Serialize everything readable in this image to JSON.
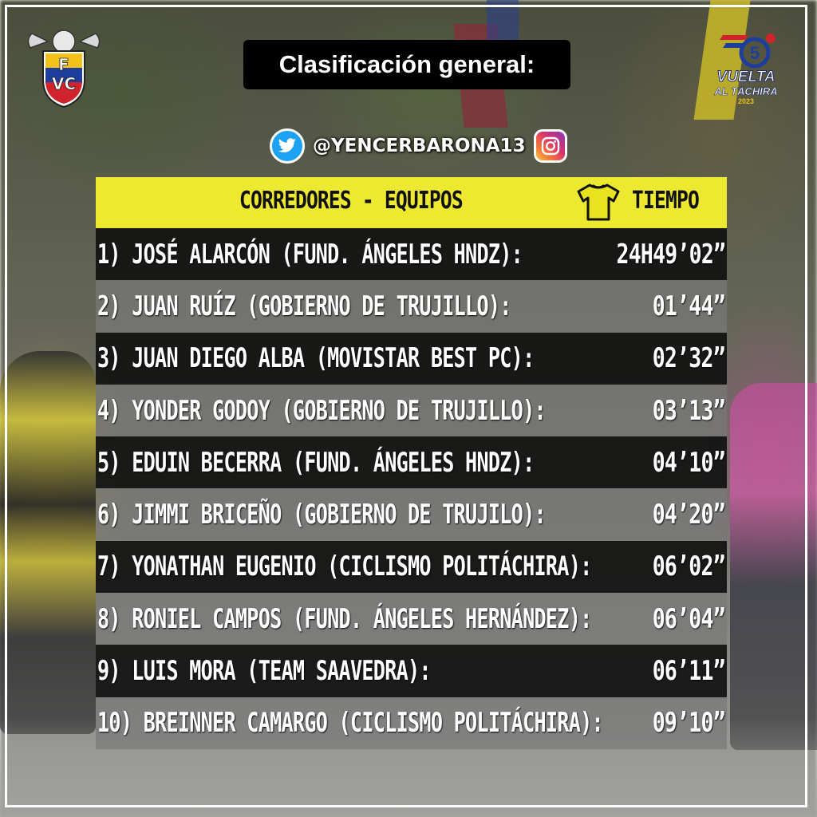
{
  "header": {
    "title": "Clasificación general:",
    "social_handle": "@YENCERBARONA13"
  },
  "logos": {
    "left": "fvc-emblem-icon",
    "right": {
      "word": "VUELTA",
      "sub": "AL TÁCHIRA",
      "year": "2023"
    }
  },
  "table": {
    "columns": {
      "riders": "CORREDORES - EQUIPOS",
      "time": "TIEMPO"
    },
    "rows": [
      {
        "rider": "1) JOSÉ ALARCÓN (FUND. ÁNGELES HNDZ):",
        "time": "24H49’02”"
      },
      {
        "rider": "2) JUAN RUÍZ (GOBIERNO DE TRUJILLO):",
        "time": "01’44”"
      },
      {
        "rider": "3) JUAN DIEGO ALBA (MOVISTAR BEST PC):",
        "time": "02’32”"
      },
      {
        "rider": "4) YONDER GODOY (GOBIERNO DE TRUJILLO):",
        "time": "03’13”"
      },
      {
        "rider": "5) EDUIN BECERRA (FUND. ÁNGELES HNDZ):",
        "time": "04’10”"
      },
      {
        "rider": "6) JIMMI BRICEÑO (GOBIERNO DE TRUJILO):",
        "time": "04’20”"
      },
      {
        "rider": "7) YONATHAN EUGENIO (CICLISMO POLITÁCHIRA):",
        "time": "06’02”"
      },
      {
        "rider": "8) RONIEL CAMPOS (FUND. ÁNGELES HERNÁNDEZ):",
        "time": "06’04”"
      },
      {
        "rider": "9) LUIS MORA (TEAM SAAVEDRA):",
        "time": "06’11”"
      },
      {
        "rider": "10) BREINNER CAMARGO (CICLISMO POLITÁCHIRA):",
        "time": "09’10”"
      }
    ]
  },
  "colors": {
    "header_yellow": "#ede830",
    "row_dark": "#121212",
    "row_light": "#787878",
    "twitter_blue": "#1da1f2"
  }
}
